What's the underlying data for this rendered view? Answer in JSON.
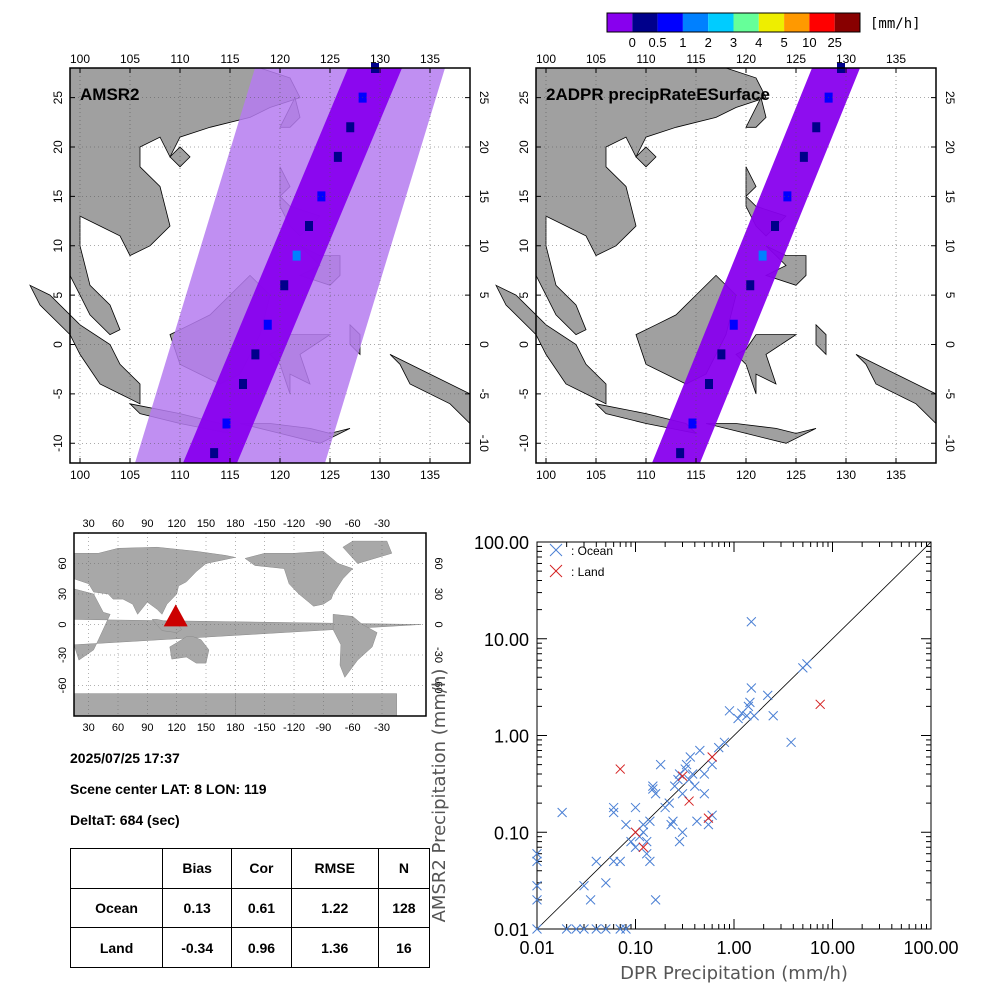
{
  "colorbar": {
    "colors": [
      "#8800ee",
      "#00008b",
      "#0000ff",
      "#0080ff",
      "#00ccff",
      "#66ff99",
      "#eeee00",
      "#ff9900",
      "#ff0000",
      "#880000"
    ],
    "labels": [
      "0",
      "0.5",
      "1",
      "2",
      "3",
      "4",
      "5",
      "10",
      "25"
    ],
    "unit": "[mm/h]"
  },
  "maps": [
    {
      "title": "AMSR2",
      "lon_ticks": [
        "100",
        "105",
        "110",
        "115",
        "120",
        "125",
        "130",
        "135"
      ],
      "lat_ticks": [
        "25",
        "20",
        "15",
        "10",
        "5",
        "0",
        "-5",
        "-10"
      ]
    },
    {
      "title": "2ADPR precipRateESurface",
      "lon_ticks": [
        "100",
        "105",
        "110",
        "115",
        "120",
        "125",
        "130",
        "135"
      ],
      "lat_ticks": [
        "25",
        "20",
        "15",
        "10",
        "5",
        "0",
        "-5",
        "-10"
      ]
    }
  ],
  "world": {
    "lon_ticks": [
      "30",
      "60",
      "90",
      "120",
      "150",
      "180",
      "-150",
      "-120",
      "-90",
      "-60",
      "-30"
    ],
    "lat_ticks": [
      "60",
      "30",
      "0",
      "-30",
      "-60"
    ],
    "marker_color": "#cc0000"
  },
  "info": {
    "datetime": "2025/07/25 17:37",
    "scene": "Scene center LAT:  8   LON: 119",
    "delta": "DeltaT:  684 (sec)"
  },
  "stats": {
    "headers": [
      "",
      "Bias",
      "Cor",
      "RMSE",
      "N"
    ],
    "rows": [
      {
        "label": "Ocean",
        "bias": "0.13",
        "cor": "0.61",
        "rmse": "1.22",
        "n": "128"
      },
      {
        "label": "Land",
        "bias": "-0.34",
        "cor": "0.96",
        "rmse": "1.36",
        "n": "16"
      }
    ]
  },
  "chart_data": {
    "type": "scatter",
    "xlabel": "DPR Precipitation (mm/h)",
    "ylabel": "AMSR2 Precipitation (mm/h)",
    "xscale": "log",
    "yscale": "log",
    "xlim": [
      0.01,
      100
    ],
    "ylim": [
      0.01,
      100
    ],
    "x_tick_labels": [
      "0.01",
      "0.10",
      "1.00",
      "10.00",
      "100.00"
    ],
    "y_tick_labels": [
      "0.01",
      "0.10",
      "1.00",
      "10.00",
      "100.00"
    ],
    "legend_placement": "top-left",
    "one_to_one_line": true,
    "series": [
      {
        "name": ": Ocean",
        "color": "#4a7fd4",
        "marker": "x",
        "points": [
          [
            0.01,
            0.06
          ],
          [
            0.01,
            0.05
          ],
          [
            0.01,
            0.028
          ],
          [
            0.01,
            0.02
          ],
          [
            0.01,
            0.01
          ],
          [
            0.02,
            0.01
          ],
          [
            0.025,
            0.01
          ],
          [
            0.03,
            0.01
          ],
          [
            0.04,
            0.01
          ],
          [
            0.05,
            0.01
          ],
          [
            0.07,
            0.01
          ],
          [
            0.08,
            0.01
          ],
          [
            0.018,
            0.16
          ],
          [
            0.03,
            0.028
          ],
          [
            0.035,
            0.02
          ],
          [
            0.04,
            0.05
          ],
          [
            0.05,
            0.03
          ],
          [
            0.06,
            0.05
          ],
          [
            0.06,
            0.16
          ],
          [
            0.06,
            0.18
          ],
          [
            0.07,
            0.05
          ],
          [
            0.08,
            0.12
          ],
          [
            0.09,
            0.08
          ],
          [
            0.1,
            0.07
          ],
          [
            0.1,
            0.18
          ],
          [
            0.11,
            0.09
          ],
          [
            0.12,
            0.1
          ],
          [
            0.12,
            0.12
          ],
          [
            0.13,
            0.06
          ],
          [
            0.13,
            0.08
          ],
          [
            0.14,
            0.05
          ],
          [
            0.14,
            0.13
          ],
          [
            0.15,
            0.3
          ],
          [
            0.15,
            0.28
          ],
          [
            0.16,
            0.25
          ],
          [
            0.16,
            0.02
          ],
          [
            0.18,
            0.5
          ],
          [
            0.2,
            0.18
          ],
          [
            0.22,
            0.2
          ],
          [
            0.23,
            0.12
          ],
          [
            0.24,
            0.13
          ],
          [
            0.25,
            0.3
          ],
          [
            0.27,
            0.35
          ],
          [
            0.28,
            0.4
          ],
          [
            0.28,
            0.08
          ],
          [
            0.3,
            0.1
          ],
          [
            0.3,
            0.25
          ],
          [
            0.32,
            0.45
          ],
          [
            0.33,
            0.5
          ],
          [
            0.35,
            0.35
          ],
          [
            0.36,
            0.6
          ],
          [
            0.38,
            0.4
          ],
          [
            0.4,
            0.3
          ],
          [
            0.42,
            0.13
          ],
          [
            0.45,
            0.7
          ],
          [
            0.5,
            0.4
          ],
          [
            0.5,
            0.25
          ],
          [
            0.55,
            0.12
          ],
          [
            0.6,
            0.5
          ],
          [
            0.6,
            0.15
          ],
          [
            0.7,
            0.75
          ],
          [
            0.8,
            0.85
          ],
          [
            0.9,
            1.8
          ],
          [
            1.1,
            1.5
          ],
          [
            1.2,
            1.7
          ],
          [
            1.35,
            1.6
          ],
          [
            1.4,
            2
          ],
          [
            1.45,
            2.2
          ],
          [
            1.5,
            15
          ],
          [
            1.5,
            3.1
          ],
          [
            1.6,
            1.6
          ],
          [
            2.2,
            2.6
          ],
          [
            2.5,
            1.6
          ],
          [
            3.8,
            0.85
          ],
          [
            5,
            5
          ],
          [
            5.5,
            5.5
          ]
        ]
      },
      {
        "name": ": Land",
        "color": "#d42020",
        "marker": "x",
        "points": [
          [
            0.07,
            0.45
          ],
          [
            0.1,
            0.1
          ],
          [
            0.12,
            0.07
          ],
          [
            0.3,
            0.38
          ],
          [
            0.35,
            0.21
          ],
          [
            0.55,
            0.14
          ],
          [
            0.6,
            0.6
          ],
          [
            7.5,
            2.1
          ]
        ]
      }
    ]
  }
}
